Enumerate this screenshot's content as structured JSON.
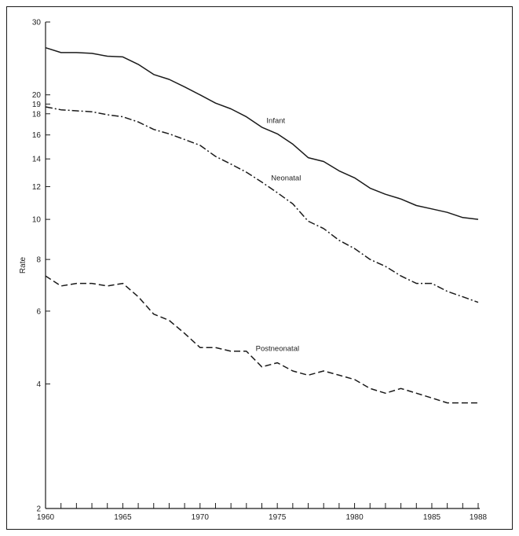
{
  "chart_data": {
    "type": "line",
    "title": "",
    "xlabel": "",
    "ylabel": "Rate",
    "y_scale": "log",
    "xlim": [
      1960,
      1988
    ],
    "ylim": [
      2,
      30
    ],
    "x_ticks_labeled": [
      "1960",
      "1965",
      "1970",
      "1975",
      "1980",
      "1985",
      "1988"
    ],
    "y_ticks": [
      2,
      4,
      6,
      8,
      10,
      12,
      14,
      16,
      18,
      19,
      20,
      30
    ],
    "y_tick_labels": [
      "2",
      "4",
      "6",
      "8",
      "10",
      "12",
      "14",
      "16",
      "18",
      "19",
      "20",
      "30"
    ],
    "grid": false,
    "x": [
      1960,
      1961,
      1962,
      1963,
      1964,
      1965,
      1966,
      1967,
      1968,
      1969,
      1970,
      1971,
      1972,
      1973,
      1974,
      1975,
      1976,
      1977,
      1978,
      1979,
      1980,
      1981,
      1982,
      1983,
      1984,
      1985,
      1986,
      1987,
      1988
    ],
    "series": [
      {
        "name": "Infant",
        "line_style": "solid",
        "values": [
          26.0,
          25.3,
          25.3,
          25.2,
          24.8,
          24.7,
          23.7,
          22.4,
          21.8,
          20.9,
          20.0,
          19.1,
          18.5,
          17.7,
          16.7,
          16.1,
          15.2,
          14.1,
          13.8,
          13.1,
          12.6,
          11.9,
          11.5,
          11.2,
          10.8,
          10.6,
          10.4,
          10.1,
          10.0
        ]
      },
      {
        "name": "Neonatal",
        "line_style": "dash-dot",
        "values": [
          18.7,
          18.4,
          18.3,
          18.2,
          17.9,
          17.7,
          17.2,
          16.5,
          16.1,
          15.6,
          15.1,
          14.2,
          13.6,
          13.0,
          12.3,
          11.6,
          10.9,
          9.9,
          9.5,
          8.9,
          8.5,
          8.0,
          7.7,
          7.3,
          7.0,
          7.0,
          6.7,
          6.5,
          6.3
        ]
      },
      {
        "name": "Postneonatal",
        "line_style": "dashed",
        "values": [
          7.3,
          6.9,
          7.0,
          7.0,
          6.9,
          7.0,
          6.5,
          5.9,
          5.7,
          5.3,
          4.9,
          4.9,
          4.8,
          4.8,
          4.4,
          4.5,
          4.3,
          4.2,
          4.3,
          4.2,
          4.1,
          3.9,
          3.8,
          3.9,
          3.8,
          3.7,
          3.6,
          3.6,
          3.6
        ]
      }
    ]
  },
  "ui": {
    "colors": {
      "ink": "#1a1a1a",
      "background": "#ffffff"
    }
  }
}
